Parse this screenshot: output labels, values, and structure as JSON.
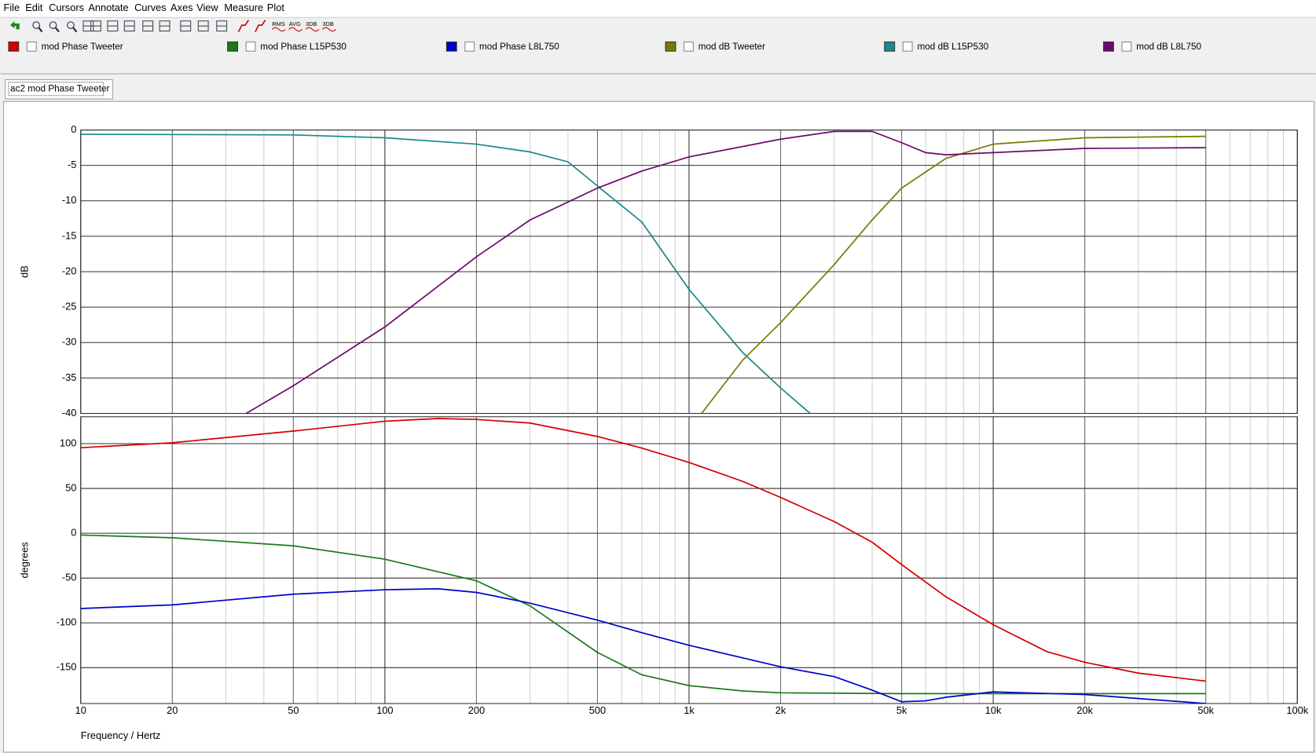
{
  "menu": [
    "File",
    "Edit",
    "Cursors",
    "Annotate",
    "Curves",
    "Axes",
    "View",
    "Measure",
    "Plot"
  ],
  "toolbar_labels": [
    "RMS",
    "AVG",
    "3DB",
    "3DB"
  ],
  "tab": "ac2 mod Phase Tweeter",
  "chart_data": [
    {
      "type": "line",
      "ylabel": "dB",
      "xscale": "log",
      "xlim": [
        10,
        100000
      ],
      "ylim": [
        -40,
        0
      ],
      "yticks": [
        0,
        -5,
        -10,
        -15,
        -20,
        -25,
        -30,
        -35,
        -40
      ],
      "grid": true,
      "series": [
        {
          "name": "mod dB Tweeter",
          "color": "#7a7a00",
          "x": [
            1100,
            1500,
            2000,
            3000,
            4000,
            5000,
            7000,
            10000,
            20000,
            50000
          ],
          "values": [
            -40,
            -32.5,
            -27.2,
            -19,
            -12.7,
            -8.2,
            -4,
            -2,
            -1.1,
            -0.9
          ]
        },
        {
          "name": "mod dB L15P530",
          "color": "#1a8a8a",
          "x": [
            10,
            50,
            100,
            200,
            300,
            400,
            500,
            700,
            1000,
            1500,
            2000,
            2500
          ],
          "values": [
            -0.6,
            -0.7,
            -1.1,
            -2,
            -3.1,
            -4.5,
            -7.9,
            -13,
            -22.5,
            -31.4,
            -36.4,
            -40
          ]
        },
        {
          "name": "mod dB L8L750",
          "color": "#6a0a6a",
          "x": [
            35,
            50,
            100,
            200,
            300,
            500,
            700,
            1000,
            2000,
            3000,
            4000,
            5000,
            6000,
            7000,
            10000,
            20000,
            50000
          ],
          "values": [
            -40,
            -36.1,
            -27.8,
            -17.9,
            -12.7,
            -8.2,
            -5.8,
            -3.8,
            -1.3,
            -0.2,
            -0.2,
            -1.8,
            -3.2,
            -3.5,
            -3.2,
            -2.6,
            -2.5
          ]
        }
      ]
    },
    {
      "type": "line",
      "ylabel": "degrees",
      "xlabel": "Frequency / Hertz",
      "xscale": "log",
      "xlim": [
        10,
        100000
      ],
      "ylim": [
        -190,
        130
      ],
      "xticks": [
        10,
        20,
        50,
        100,
        200,
        500,
        {
          "value": 1000,
          "label": "1k"
        },
        {
          "value": 2000,
          "label": "2k"
        },
        {
          "value": 5000,
          "label": "5k"
        },
        {
          "value": 10000,
          "label": "10k"
        },
        {
          "value": 20000,
          "label": "20k"
        },
        {
          "value": 50000,
          "label": "50k"
        },
        {
          "value": 100000,
          "label": "100k"
        }
      ],
      "yticks": [
        100,
        50,
        0,
        -50,
        -100,
        -150
      ],
      "grid": true,
      "series": [
        {
          "name": "mod Phase Tweeter",
          "color": "#d40000",
          "x": [
            10,
            20,
            50,
            100,
            150,
            200,
            300,
            500,
            700,
            1000,
            1500,
            2000,
            3000,
            4000,
            5000,
            7000,
            10000,
            15000,
            20000,
            30000,
            50000
          ],
          "values": [
            95.5,
            101,
            114,
            125,
            128,
            127,
            123,
            108,
            95,
            79,
            58,
            40,
            13,
            -10,
            -35,
            -71,
            -102,
            -132,
            -144,
            -156,
            -165
          ]
        },
        {
          "name": "mod Phase L15P530",
          "color": "#1a7a1a",
          "x": [
            10,
            20,
            50,
            100,
            200,
            300,
            500,
            700,
            1000,
            1500,
            2000,
            5000,
            50000
          ],
          "values": [
            -2,
            -5,
            -14,
            -29,
            -53,
            -81,
            -133,
            -158,
            -170,
            -176,
            -178,
            -179,
            -179
          ]
        },
        {
          "name": "mod Phase L8L750",
          "color": "#0000c8",
          "x": [
            10,
            20,
            50,
            100,
            150,
            200,
            300,
            500,
            700,
            1000,
            2000,
            3000,
            4000,
            5000,
            6000,
            7000,
            10000,
            20000,
            50000
          ],
          "values": [
            -84,
            -80,
            -68,
            -63,
            -62,
            -66,
            -78,
            -97,
            -111,
            -125,
            -149,
            -160,
            -175,
            -188,
            -187,
            -183,
            -177,
            -180,
            -190
          ]
        }
      ]
    }
  ]
}
